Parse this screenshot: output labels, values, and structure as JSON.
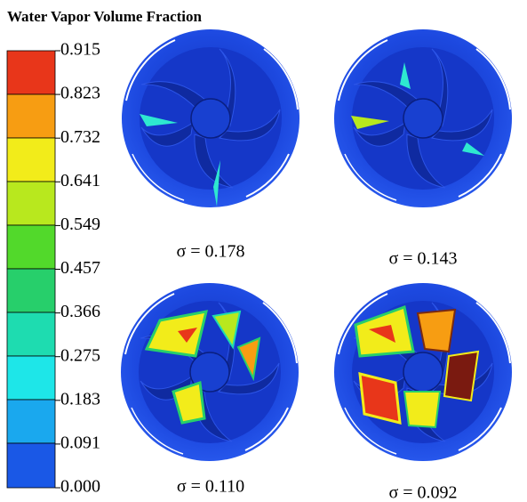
{
  "title": "Water Vapor Volume Fraction",
  "colorbar": {
    "labels": [
      "0.915",
      "0.823",
      "0.732",
      "0.641",
      "0.549",
      "0.457",
      "0.366",
      "0.275",
      "0.183",
      "0.091",
      "0.000"
    ]
  },
  "panels": [
    {
      "label": "σ = 0.178"
    },
    {
      "label": "σ = 0.143"
    },
    {
      "label": "σ = 0.110"
    },
    {
      "label": "σ = 0.092"
    }
  ]
}
